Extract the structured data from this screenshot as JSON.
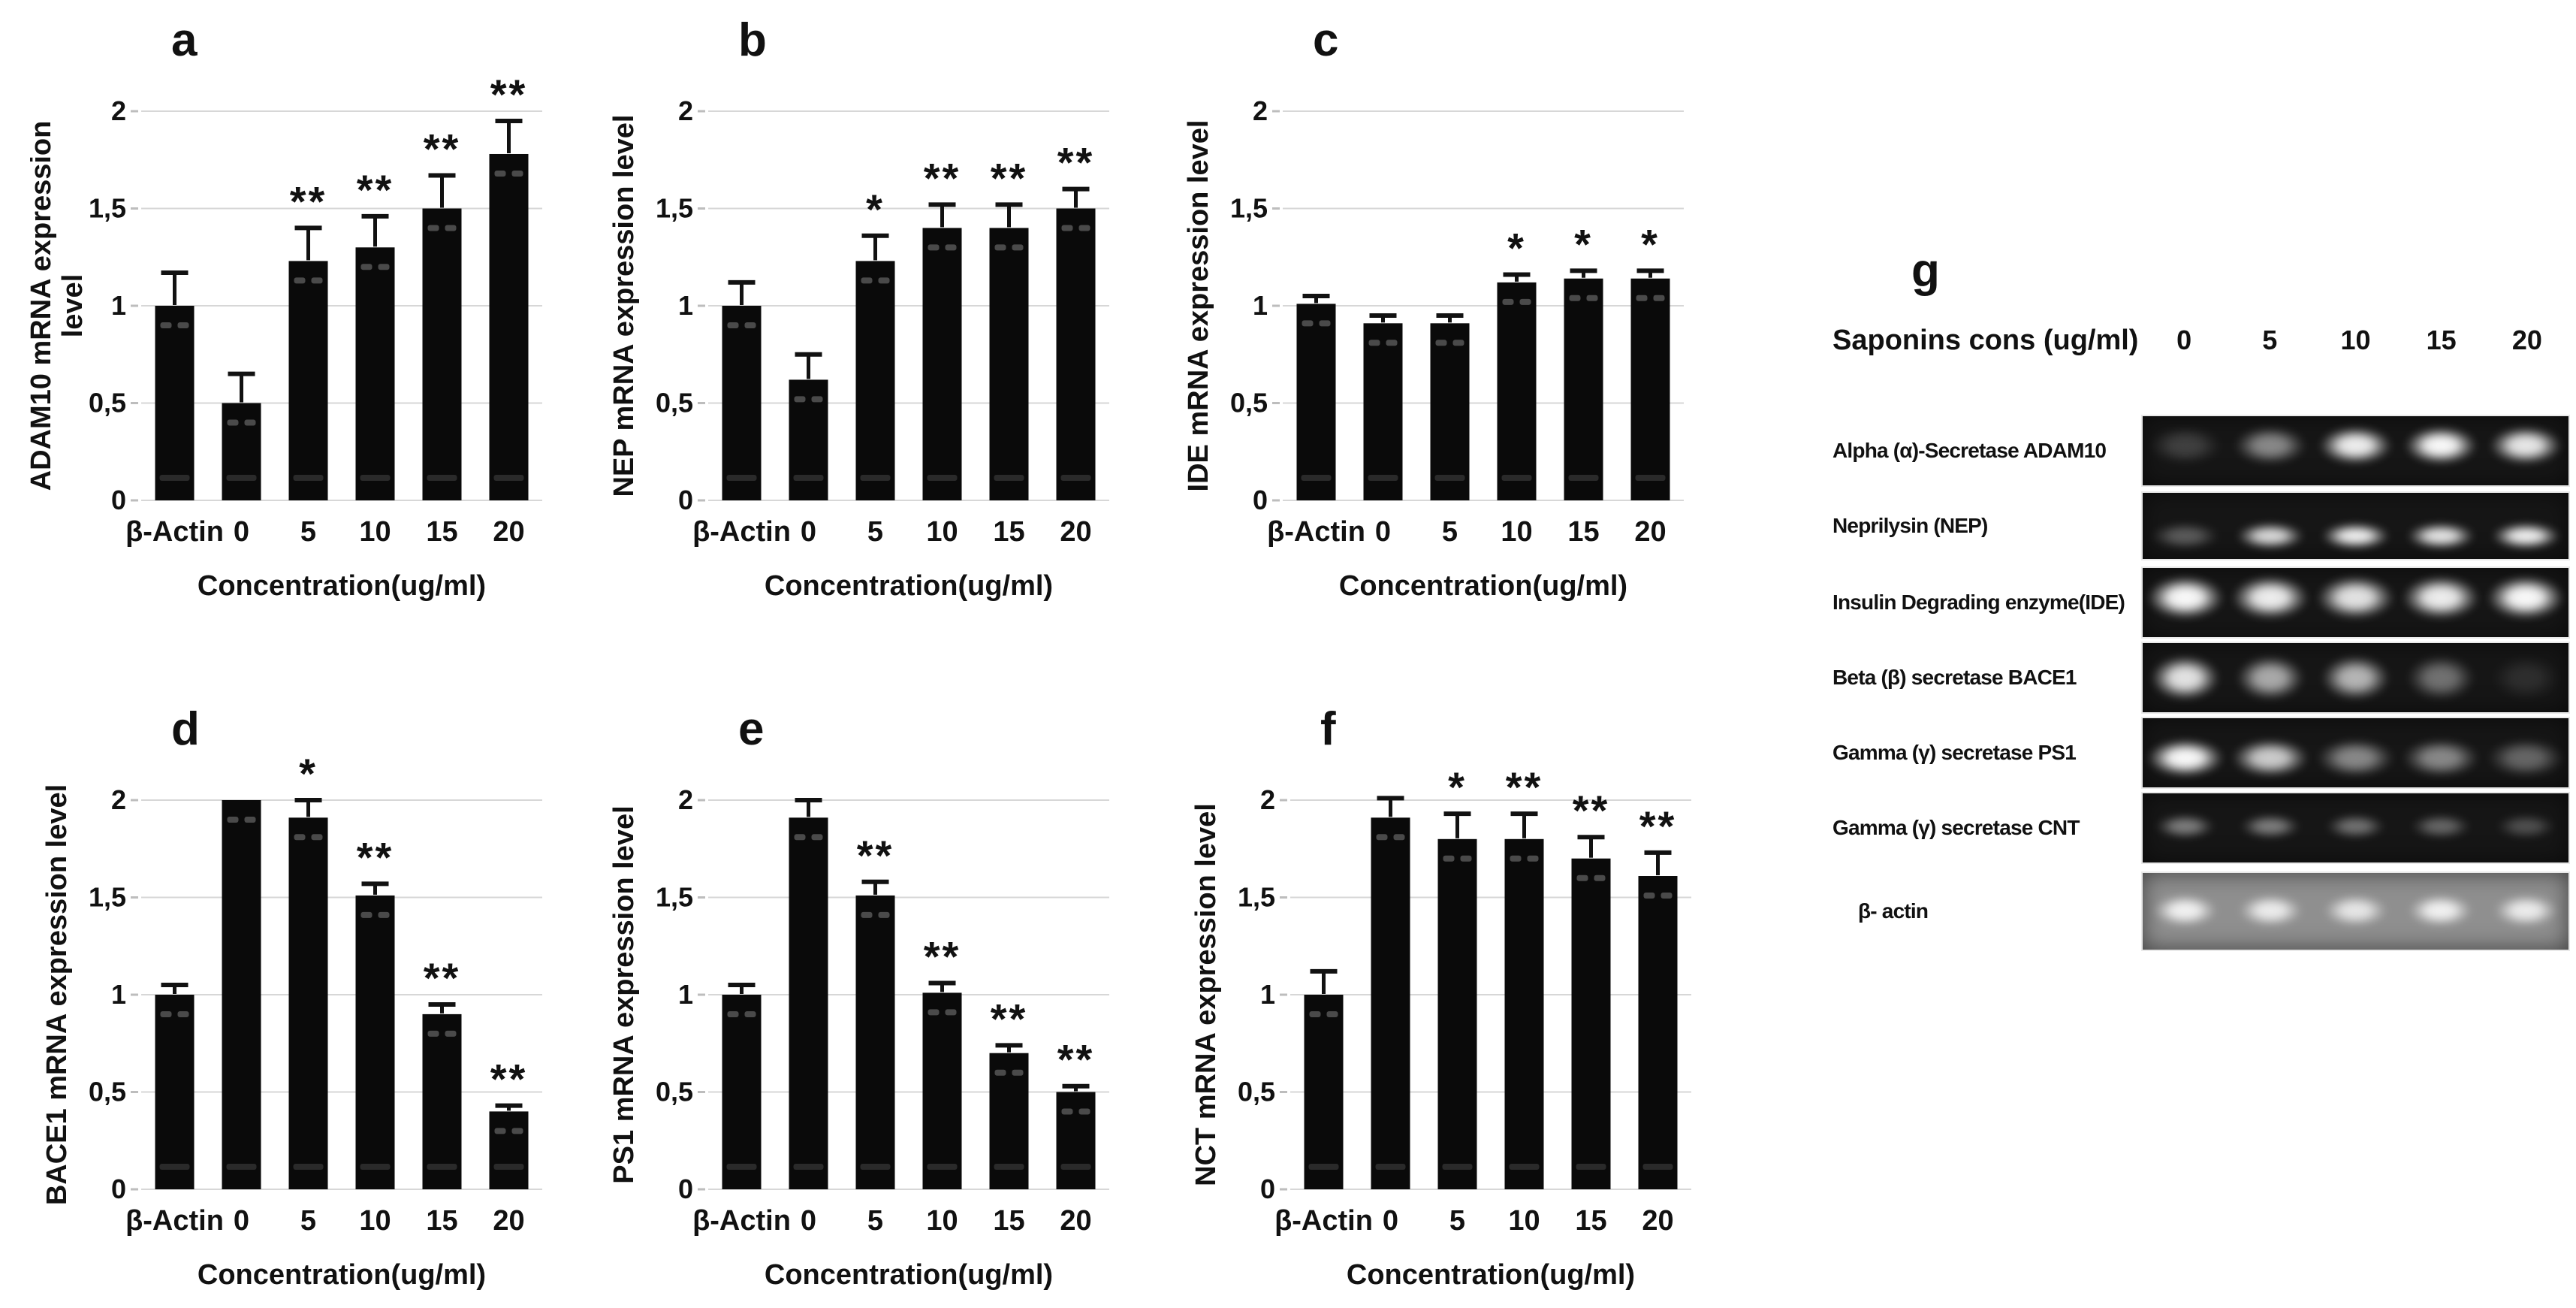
{
  "style": {
    "bar_color": "#0a0a0a",
    "grid_color": "#d7d7d7",
    "tick_color": "#bdbdbd",
    "text_color": "#111111",
    "gel_dark_bg": "#161616",
    "gel_light_bg": "#8f8f8f"
  },
  "chart_data": [
    {
      "type": "bar",
      "panel": "a",
      "ylabel": "ADAM10 mRNA expression level",
      "ylabel_lines": [
        "ADAM10 mRNA expression",
        "level"
      ],
      "xlabel": "Concentration(ug/ml)",
      "categories": [
        "β-Actin",
        "0",
        "5",
        "10",
        "15",
        "20"
      ],
      "values": [
        1.0,
        0.5,
        1.23,
        1.3,
        1.5,
        1.78
      ],
      "errors": [
        0.17,
        0.15,
        0.17,
        0.16,
        0.17,
        0.17
      ],
      "significance": [
        "",
        "",
        "**",
        "**",
        "**",
        "**"
      ],
      "ylim": [
        0,
        2.3
      ],
      "grid": true,
      "legend": "none",
      "yticks": [
        0,
        0.5,
        1,
        1.5,
        2
      ],
      "ytick_labels": [
        "0",
        "0,5",
        "1",
        "1,5",
        "2"
      ]
    },
    {
      "type": "bar",
      "panel": "b",
      "ylabel": "NEP mRNA expression level",
      "ylabel_lines": [
        "NEP mRNA expression level"
      ],
      "xlabel": "Concentration(ug/ml)",
      "categories": [
        "β-Actin",
        "0",
        "5",
        "10",
        "15",
        "20"
      ],
      "values": [
        1.0,
        0.62,
        1.23,
        1.4,
        1.4,
        1.5
      ],
      "errors": [
        0.12,
        0.13,
        0.13,
        0.12,
        0.12,
        0.1
      ],
      "significance": [
        "",
        "",
        "*",
        "**",
        "**",
        "**"
      ],
      "ylim": [
        0,
        2.3
      ],
      "grid": true,
      "legend": "none",
      "yticks": [
        0,
        0.5,
        1,
        1.5,
        2
      ],
      "ytick_labels": [
        "0",
        "0,5",
        "1",
        "1,5",
        "2"
      ]
    },
    {
      "type": "bar",
      "panel": "c",
      "ylabel": "IDE mRNA expression level",
      "ylabel_lines": [
        "IDE mRNA expression level"
      ],
      "xlabel": "Concentration(ug/ml)",
      "categories": [
        "β-Actin",
        "0",
        "5",
        "10",
        "15",
        "20"
      ],
      "values": [
        1.01,
        0.91,
        0.91,
        1.12,
        1.14,
        1.14
      ],
      "errors": [
        0.04,
        0.04,
        0.04,
        0.04,
        0.04,
        0.04
      ],
      "significance": [
        "",
        "",
        "",
        "*",
        "*",
        "*"
      ],
      "ylim": [
        0,
        2.3
      ],
      "grid": true,
      "legend": "none",
      "yticks": [
        0,
        0.5,
        1,
        1.5,
        2
      ],
      "ytick_labels": [
        "0",
        "0,5",
        "1",
        "1,5",
        "2"
      ]
    },
    {
      "type": "bar",
      "panel": "d",
      "ylabel": "BACE1 mRNA expression level",
      "ylabel_lines": [
        "BACE1 mRNA expression level"
      ],
      "xlabel": "Concentration(ug/ml)",
      "categories": [
        "β-Actin",
        "0",
        "5",
        "10",
        "15",
        "20"
      ],
      "values": [
        1.0,
        2.0,
        1.91,
        1.51,
        0.9,
        0.4
      ],
      "errors": [
        0.05,
        0,
        0.09,
        0.06,
        0.05,
        0.03
      ],
      "significance": [
        "",
        "",
        "*",
        "**",
        "**",
        "**"
      ],
      "ylim": [
        0,
        2.3
      ],
      "grid": true,
      "legend": "none",
      "yticks": [
        0,
        0.5,
        1,
        1.5,
        2
      ],
      "ytick_labels": [
        "0",
        "0,5",
        "1",
        "1,5",
        "2"
      ]
    },
    {
      "type": "bar",
      "panel": "e",
      "ylabel": "PS1 mRNA expression level",
      "ylabel_lines": [
        "PS1 mRNA expression level"
      ],
      "xlabel": "Concentration(ug/ml)",
      "categories": [
        "β-Actin",
        "0",
        "5",
        "10",
        "15",
        "20"
      ],
      "values": [
        1.0,
        1.91,
        1.51,
        1.01,
        0.7,
        0.5
      ],
      "errors": [
        0.05,
        0.09,
        0.07,
        0.05,
        0.04,
        0.03
      ],
      "significance": [
        "",
        "",
        "**",
        "**",
        "**",
        "**"
      ],
      "ylim": [
        0,
        2.3
      ],
      "grid": true,
      "legend": "none",
      "yticks": [
        0,
        0.5,
        1,
        1.5,
        2
      ],
      "ytick_labels": [
        "0",
        "0,5",
        "1",
        "1,5",
        "2"
      ]
    },
    {
      "type": "bar",
      "panel": "f",
      "ylabel": "NCT mRNA expression level",
      "ylabel_lines": [
        "NCT mRNA expression level"
      ],
      "xlabel": "Concentration(ug/ml)",
      "categories": [
        "β-Actin",
        "0",
        "5",
        "10",
        "15",
        "20"
      ],
      "values": [
        1.0,
        1.91,
        1.8,
        1.8,
        1.7,
        1.61
      ],
      "errors": [
        0.12,
        0.1,
        0.13,
        0.13,
        0.11,
        0.12
      ],
      "significance": [
        "",
        "",
        "*",
        "**",
        "**",
        "**"
      ],
      "ylim": [
        0,
        2.3
      ],
      "grid": true,
      "legend": "none",
      "yticks": [
        0,
        0.5,
        1,
        1.5,
        2
      ],
      "ytick_labels": [
        "0",
        "0,5",
        "1",
        "1,5",
        "2"
      ]
    }
  ],
  "gel": {
    "letter": "g",
    "header_label": "Saponins cons (ug/ml)",
    "lane_labels": [
      "0",
      "5",
      "10",
      "15",
      "20"
    ],
    "rows": [
      {
        "label": "Alpha (α)-Secretase ADAM10",
        "intensities": [
          0.18,
          0.5,
          0.95,
          1.0,
          0.92
        ],
        "band_top": 15,
        "band_h": 55,
        "band_w": 17,
        "light_bg": false
      },
      {
        "label": "Neprilysin (NEP)",
        "intensities": [
          0.3,
          0.85,
          0.95,
          0.9,
          0.95
        ],
        "band_top": 45,
        "band_h": 40,
        "band_w": 16,
        "light_bg": false
      },
      {
        "label": "Insulin Degrading enzyme(IDE)",
        "intensities": [
          1.0,
          0.95,
          0.9,
          0.95,
          1.0
        ],
        "band_top": 12,
        "band_h": 62,
        "band_w": 18,
        "light_bg": false
      },
      {
        "label": "Beta (β) secretase BACE1",
        "intensities": [
          0.9,
          0.65,
          0.7,
          0.4,
          0.1
        ],
        "band_top": 18,
        "band_h": 65,
        "band_w": 16,
        "light_bg": false
      },
      {
        "label": "Gamma (γ) secretase PS1",
        "intensities": [
          1.0,
          0.8,
          0.5,
          0.5,
          0.35
        ],
        "band_top": 30,
        "band_h": 55,
        "band_w": 18,
        "light_bg": false
      },
      {
        "label": "Gamma (γ) secretase CNT",
        "intensities": [
          0.45,
          0.45,
          0.4,
          0.35,
          0.25
        ],
        "band_top": 30,
        "band_h": 35,
        "band_w": 14,
        "light_bg": false
      },
      {
        "label": "β- actin",
        "intensities": [
          0.9,
          0.85,
          0.8,
          0.9,
          0.85
        ],
        "band_top": 28,
        "band_h": 42,
        "band_w": 15,
        "light_bg": true
      }
    ]
  }
}
